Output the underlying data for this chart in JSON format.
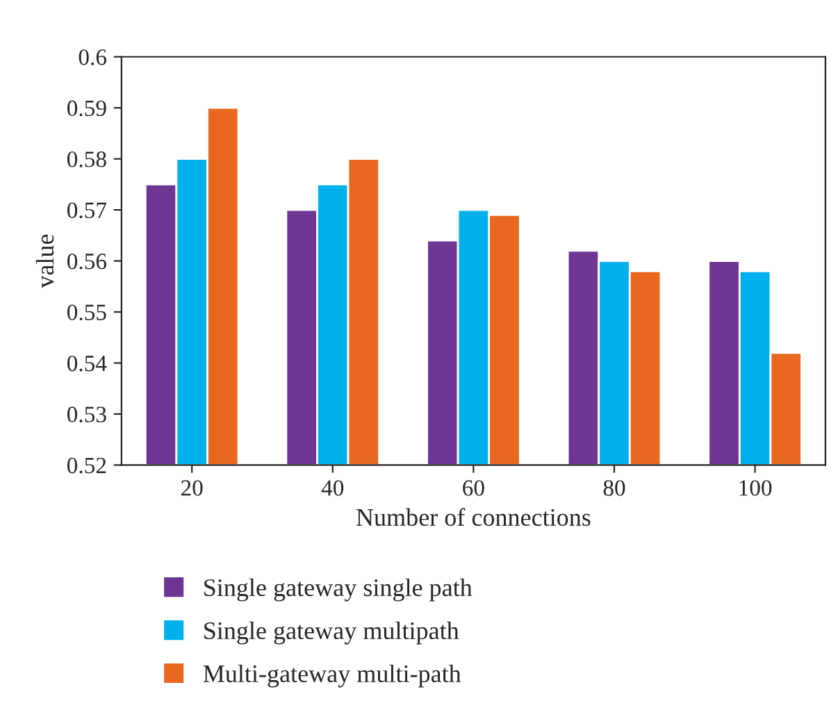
{
  "chart_data": {
    "type": "bar",
    "xlabel": "Number of connections",
    "ylabel": "value",
    "categories": [
      "20",
      "40",
      "60",
      "80",
      "100"
    ],
    "series": [
      {
        "name": "Single gateway single path",
        "color": "#6f3592",
        "values": [
          0.575,
          0.57,
          0.564,
          0.562,
          0.56
        ]
      },
      {
        "name": "Single gateway multipath",
        "color": "#00b0ec",
        "values": [
          0.58,
          0.575,
          0.57,
          0.56,
          0.558
        ]
      },
      {
        "name": "Multi-gateway multi-path",
        "color": "#e8681f",
        "values": [
          0.59,
          0.58,
          0.569,
          0.558,
          0.542
        ]
      }
    ],
    "ylim": [
      0.52,
      0.6
    ],
    "yticks": [
      {
        "value": 0.52,
        "label": "0.52"
      },
      {
        "value": 0.53,
        "label": "0.53"
      },
      {
        "value": 0.54,
        "label": "0.54"
      },
      {
        "value": 0.55,
        "label": "0.55"
      },
      {
        "value": 0.56,
        "label": "0.56"
      },
      {
        "value": 0.57,
        "label": "0.57"
      },
      {
        "value": 0.58,
        "label": "0.58"
      },
      {
        "value": 0.59,
        "label": "0.59"
      },
      {
        "value": 0.6,
        "label": "0.6"
      }
    ],
    "grid": false,
    "legend": "bottom"
  }
}
